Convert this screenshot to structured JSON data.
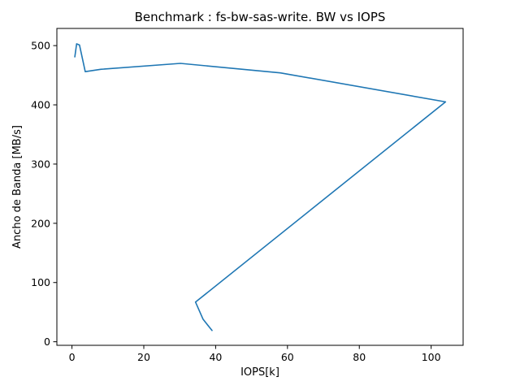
{
  "chart_data": {
    "type": "line",
    "title": "Benchmark : fs-bw-sas-write. BW vs IOPS",
    "xlabel": "IOPS[k]",
    "ylabel": "Ancho de Banda [MB/s]",
    "xlim": [
      -4.2,
      108.9
    ],
    "ylim": [
      -6.0,
      529.0
    ],
    "x_ticks": [
      0,
      20,
      40,
      60,
      80,
      100
    ],
    "y_ticks": [
      0,
      100,
      200,
      300,
      400,
      500
    ],
    "grid": false,
    "series": [
      {
        "color": "#1f77b4",
        "x": [
          0.8,
          1.3,
          2.1,
          3.7,
          8.0,
          30.2,
          58.0,
          104.0,
          34.4,
          36.5,
          39.0
        ],
        "y": [
          481,
          503,
          501,
          456,
          460,
          470,
          454,
          405,
          67,
          38,
          19
        ]
      }
    ]
  }
}
